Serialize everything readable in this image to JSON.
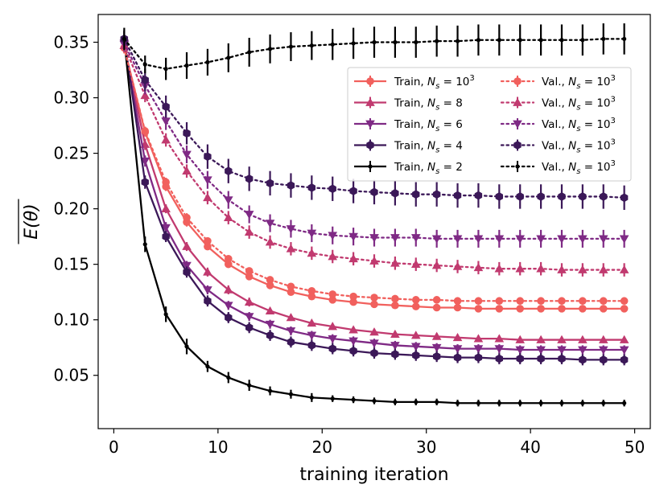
{
  "chart_data": {
    "type": "line",
    "xlabel": "training iteration",
    "ylabel": "E(θ)",
    "xlim": [
      -1.5,
      51.5
    ],
    "ylim": [
      0.002,
      0.375
    ],
    "xticks": [
      0,
      10,
      20,
      30,
      40,
      50
    ],
    "yticks": [
      0.05,
      0.1,
      0.15,
      0.2,
      0.25,
      0.3,
      0.35
    ],
    "ytick_labels": [
      "0.05",
      "0.10",
      "0.15",
      "0.20",
      "0.25",
      "0.30",
      "0.35"
    ],
    "x": [
      1,
      3,
      5,
      7,
      9,
      11,
      13,
      15,
      17,
      19,
      21,
      23,
      25,
      27,
      29,
      31,
      33,
      35,
      37,
      39,
      41,
      43,
      45,
      47,
      49
    ],
    "series": [
      {
        "name": "Train, N_s = 10^3",
        "legend_prefix": "Train, ",
        "legend_var": "N",
        "legend_sub": "s",
        "legend_eq": " = ",
        "legend_num": "10",
        "legend_sup": "3",
        "color": "#f1605d",
        "marker": "circle",
        "dash": "solid",
        "values": [
          0.345,
          0.269,
          0.22,
          0.188,
          0.166,
          0.15,
          0.139,
          0.131,
          0.125,
          0.121,
          0.118,
          0.116,
          0.114,
          0.113,
          0.112,
          0.111,
          0.111,
          0.11,
          0.11,
          0.11,
          0.11,
          0.11,
          0.11,
          0.11,
          0.11
        ],
        "err": [
          0.005,
          0.004,
          0.004,
          0.004,
          0.003,
          0.003,
          0.003,
          0.003,
          0.003,
          0.003,
          0.003,
          0.003,
          0.003,
          0.003,
          0.003,
          0.003,
          0.003,
          0.003,
          0.003,
          0.003,
          0.003,
          0.003,
          0.003,
          0.003,
          0.003
        ]
      },
      {
        "name": "Train, N_s = 8",
        "legend_prefix": "Train, ",
        "legend_var": "N",
        "legend_sub": "s",
        "legend_eq": " = ",
        "legend_num": "8",
        "legend_sup": "",
        "color": "#c13a6f",
        "marker": "triangle-up",
        "dash": "solid",
        "values": [
          0.347,
          0.258,
          0.2,
          0.166,
          0.143,
          0.127,
          0.116,
          0.108,
          0.102,
          0.097,
          0.094,
          0.091,
          0.089,
          0.087,
          0.086,
          0.085,
          0.084,
          0.083,
          0.083,
          0.082,
          0.082,
          0.082,
          0.082,
          0.082,
          0.082
        ],
        "err": [
          0.005,
          0.005,
          0.004,
          0.004,
          0.004,
          0.004,
          0.004,
          0.003,
          0.003,
          0.003,
          0.003,
          0.003,
          0.003,
          0.003,
          0.003,
          0.003,
          0.003,
          0.003,
          0.003,
          0.003,
          0.003,
          0.003,
          0.003,
          0.003,
          0.003
        ]
      },
      {
        "name": "Train, N_s = 6",
        "legend_prefix": "Train, ",
        "legend_var": "N",
        "legend_sub": "s",
        "legend_eq": " = ",
        "legend_num": "6",
        "legend_sup": "",
        "color": "#7f2a85",
        "marker": "triangle-down",
        "dash": "solid",
        "values": [
          0.348,
          0.243,
          0.183,
          0.149,
          0.127,
          0.113,
          0.103,
          0.096,
          0.09,
          0.086,
          0.083,
          0.081,
          0.079,
          0.077,
          0.076,
          0.075,
          0.074,
          0.074,
          0.074,
          0.073,
          0.073,
          0.073,
          0.073,
          0.073,
          0.073
        ],
        "err": [
          0.006,
          0.005,
          0.005,
          0.004,
          0.004,
          0.004,
          0.004,
          0.004,
          0.004,
          0.004,
          0.004,
          0.004,
          0.004,
          0.004,
          0.004,
          0.004,
          0.004,
          0.004,
          0.004,
          0.004,
          0.004,
          0.004,
          0.004,
          0.004,
          0.004
        ]
      },
      {
        "name": "Train, N_s = 4",
        "legend_prefix": "Train, ",
        "legend_var": "N",
        "legend_sub": "s",
        "legend_eq": " = ",
        "legend_num": "4",
        "legend_sup": "",
        "color": "#3b1858",
        "marker": "hexagon",
        "dash": "solid",
        "values": [
          0.353,
          0.224,
          0.175,
          0.143,
          0.117,
          0.102,
          0.093,
          0.086,
          0.08,
          0.077,
          0.074,
          0.072,
          0.07,
          0.069,
          0.068,
          0.067,
          0.066,
          0.066,
          0.065,
          0.065,
          0.065,
          0.065,
          0.064,
          0.064,
          0.064
        ],
        "err": [
          0.007,
          0.006,
          0.005,
          0.005,
          0.005,
          0.005,
          0.005,
          0.005,
          0.005,
          0.005,
          0.005,
          0.005,
          0.005,
          0.005,
          0.005,
          0.005,
          0.005,
          0.005,
          0.005,
          0.005,
          0.005,
          0.005,
          0.005,
          0.005,
          0.005
        ]
      },
      {
        "name": "Train, N_s = 2",
        "legend_prefix": "Train, ",
        "legend_var": "N",
        "legend_sub": "s",
        "legend_eq": " = ",
        "legend_num": "2",
        "legend_sup": "",
        "color": "#000000",
        "marker": "point",
        "dash": "solid",
        "values": [
          0.353,
          0.168,
          0.105,
          0.076,
          0.058,
          0.048,
          0.041,
          0.036,
          0.033,
          0.03,
          0.029,
          0.028,
          0.027,
          0.026,
          0.026,
          0.026,
          0.025,
          0.025,
          0.025,
          0.025,
          0.025,
          0.025,
          0.025,
          0.025,
          0.025
        ],
        "err": [
          0.007,
          0.007,
          0.007,
          0.007,
          0.005,
          0.005,
          0.005,
          0.004,
          0.004,
          0.004,
          0.003,
          0.003,
          0.003,
          0.003,
          0.003,
          0.003,
          0.003,
          0.003,
          0.003,
          0.003,
          0.003,
          0.003,
          0.003,
          0.003,
          0.003
        ]
      },
      {
        "name": "Val., N_s = 10^3",
        "legend_prefix": "Val., ",
        "legend_var": "N",
        "legend_sub": "s",
        "legend_eq": " = ",
        "legend_num": "10",
        "legend_sup": "3",
        "color": "#f1605d",
        "marker": "circle",
        "dash": "dotted",
        "values": [
          0.345,
          0.27,
          0.224,
          0.192,
          0.171,
          0.155,
          0.144,
          0.136,
          0.13,
          0.126,
          0.123,
          0.121,
          0.12,
          0.119,
          0.118,
          0.118,
          0.117,
          0.117,
          0.117,
          0.117,
          0.117,
          0.117,
          0.117,
          0.117,
          0.117
        ],
        "err": [
          0.005,
          0.004,
          0.004,
          0.004,
          0.003,
          0.003,
          0.003,
          0.003,
          0.003,
          0.003,
          0.003,
          0.003,
          0.003,
          0.003,
          0.003,
          0.003,
          0.003,
          0.003,
          0.003,
          0.003,
          0.003,
          0.003,
          0.003,
          0.003,
          0.003
        ]
      },
      {
        "name": "Val., N_s = 10^3",
        "legend_prefix": "Val., ",
        "legend_var": "N",
        "legend_sub": "s",
        "legend_eq": " = ",
        "legend_num": "10",
        "legend_sup": "3",
        "color": "#c13a6f",
        "marker": "triangle-up",
        "dash": "dotted",
        "values": [
          0.347,
          0.302,
          0.262,
          0.234,
          0.21,
          0.192,
          0.179,
          0.17,
          0.164,
          0.16,
          0.157,
          0.155,
          0.153,
          0.151,
          0.15,
          0.149,
          0.148,
          0.147,
          0.146,
          0.146,
          0.146,
          0.145,
          0.145,
          0.145,
          0.145
        ],
        "err": [
          0.006,
          0.006,
          0.006,
          0.006,
          0.006,
          0.006,
          0.006,
          0.006,
          0.006,
          0.006,
          0.006,
          0.006,
          0.006,
          0.006,
          0.006,
          0.006,
          0.006,
          0.006,
          0.006,
          0.006,
          0.006,
          0.006,
          0.006,
          0.006,
          0.006
        ]
      },
      {
        "name": "Val., N_s = 10^3",
        "legend_prefix": "Val., ",
        "legend_var": "N",
        "legend_sub": "s",
        "legend_eq": " = ",
        "legend_num": "10",
        "legend_sup": "3",
        "color": "#7f2a85",
        "marker": "triangle-down",
        "dash": "dotted",
        "values": [
          0.349,
          0.311,
          0.279,
          0.249,
          0.226,
          0.208,
          0.195,
          0.187,
          0.182,
          0.178,
          0.176,
          0.175,
          0.174,
          0.174,
          0.174,
          0.173,
          0.173,
          0.173,
          0.173,
          0.173,
          0.173,
          0.173,
          0.173,
          0.173,
          0.173
        ],
        "err": [
          0.007,
          0.008,
          0.008,
          0.008,
          0.008,
          0.008,
          0.008,
          0.008,
          0.008,
          0.008,
          0.008,
          0.008,
          0.008,
          0.008,
          0.008,
          0.008,
          0.008,
          0.008,
          0.008,
          0.008,
          0.008,
          0.008,
          0.008,
          0.008,
          0.008
        ]
      },
      {
        "name": "Val., N_s = 10^3",
        "legend_prefix": "Val., ",
        "legend_var": "N",
        "legend_sub": "s",
        "legend_eq": " = ",
        "legend_num": "10",
        "legend_sup": "3",
        "color": "#3b1858",
        "marker": "hexagon",
        "dash": "dotted",
        "values": [
          0.353,
          0.316,
          0.292,
          0.268,
          0.247,
          0.234,
          0.227,
          0.223,
          0.221,
          0.219,
          0.218,
          0.216,
          0.215,
          0.214,
          0.213,
          0.213,
          0.212,
          0.212,
          0.211,
          0.211,
          0.211,
          0.211,
          0.211,
          0.211,
          0.21
        ],
        "err": [
          0.008,
          0.01,
          0.01,
          0.01,
          0.011,
          0.011,
          0.011,
          0.011,
          0.011,
          0.011,
          0.011,
          0.011,
          0.011,
          0.011,
          0.011,
          0.011,
          0.011,
          0.011,
          0.011,
          0.011,
          0.011,
          0.011,
          0.011,
          0.011,
          0.011
        ]
      },
      {
        "name": "Val., N_s = 10^3",
        "legend_prefix": "Val., ",
        "legend_var": "N",
        "legend_sub": "s",
        "legend_eq": " = ",
        "legend_num": "10",
        "legend_sup": "3",
        "color": "#000000",
        "marker": "point",
        "dash": "dotted",
        "values": [
          0.353,
          0.33,
          0.326,
          0.329,
          0.332,
          0.336,
          0.341,
          0.344,
          0.346,
          0.347,
          0.348,
          0.349,
          0.35,
          0.35,
          0.35,
          0.351,
          0.351,
          0.352,
          0.352,
          0.352,
          0.352,
          0.352,
          0.352,
          0.353,
          0.353
        ],
        "err": [
          0.01,
          0.008,
          0.01,
          0.012,
          0.012,
          0.013,
          0.013,
          0.013,
          0.013,
          0.013,
          0.014,
          0.014,
          0.014,
          0.014,
          0.014,
          0.014,
          0.014,
          0.014,
          0.014,
          0.014,
          0.014,
          0.014,
          0.014,
          0.014,
          0.014
        ]
      }
    ]
  }
}
